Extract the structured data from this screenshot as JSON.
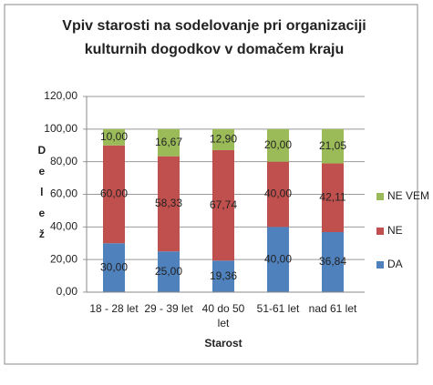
{
  "chart_data": {
    "type": "stacked_bar",
    "title": "Vpiv starosti na sodelovanje pri organizaciji kulturnih dogodkov v domačem kraju",
    "x_label": "Starost",
    "y_label": "Delež",
    "categories": [
      "18 - 28 let",
      "29 - 39 let",
      "40 do 50 let",
      "51-61 let",
      "nad 61 let"
    ],
    "series": [
      {
        "name": "DA",
        "color": "#4f81bd",
        "values": [
          30,
          25,
          19.36,
          40,
          36.84
        ],
        "value_labels": [
          "30,00",
          "25,00",
          "19,36",
          "40,00",
          "36,84"
        ]
      },
      {
        "name": "NE",
        "color": "#c0504d",
        "values": [
          60,
          58.33,
          67.74,
          40,
          42.11
        ],
        "value_labels": [
          "60,00",
          "58,33",
          "67,74",
          "40,00",
          "42,11"
        ]
      },
      {
        "name": "NE VEM",
        "color": "#9bbb59",
        "values": [
          10,
          16.67,
          12.9,
          20,
          21.05
        ],
        "value_labels": [
          "10,00",
          "16,67",
          "12,90",
          "20,00",
          "21,05"
        ]
      }
    ],
    "ylim": [
      0,
      120
    ],
    "yticks": [
      {
        "value": 0,
        "label": "0,00"
      },
      {
        "value": 20,
        "label": "20,00"
      },
      {
        "value": 40,
        "label": "40,00"
      },
      {
        "value": 60,
        "label": "60,00"
      },
      {
        "value": 80,
        "label": "80,00"
      },
      {
        "value": 100,
        "label": "100,00"
      },
      {
        "value": 120,
        "label": "120,00"
      }
    ],
    "grid": true,
    "legend": "right"
  }
}
